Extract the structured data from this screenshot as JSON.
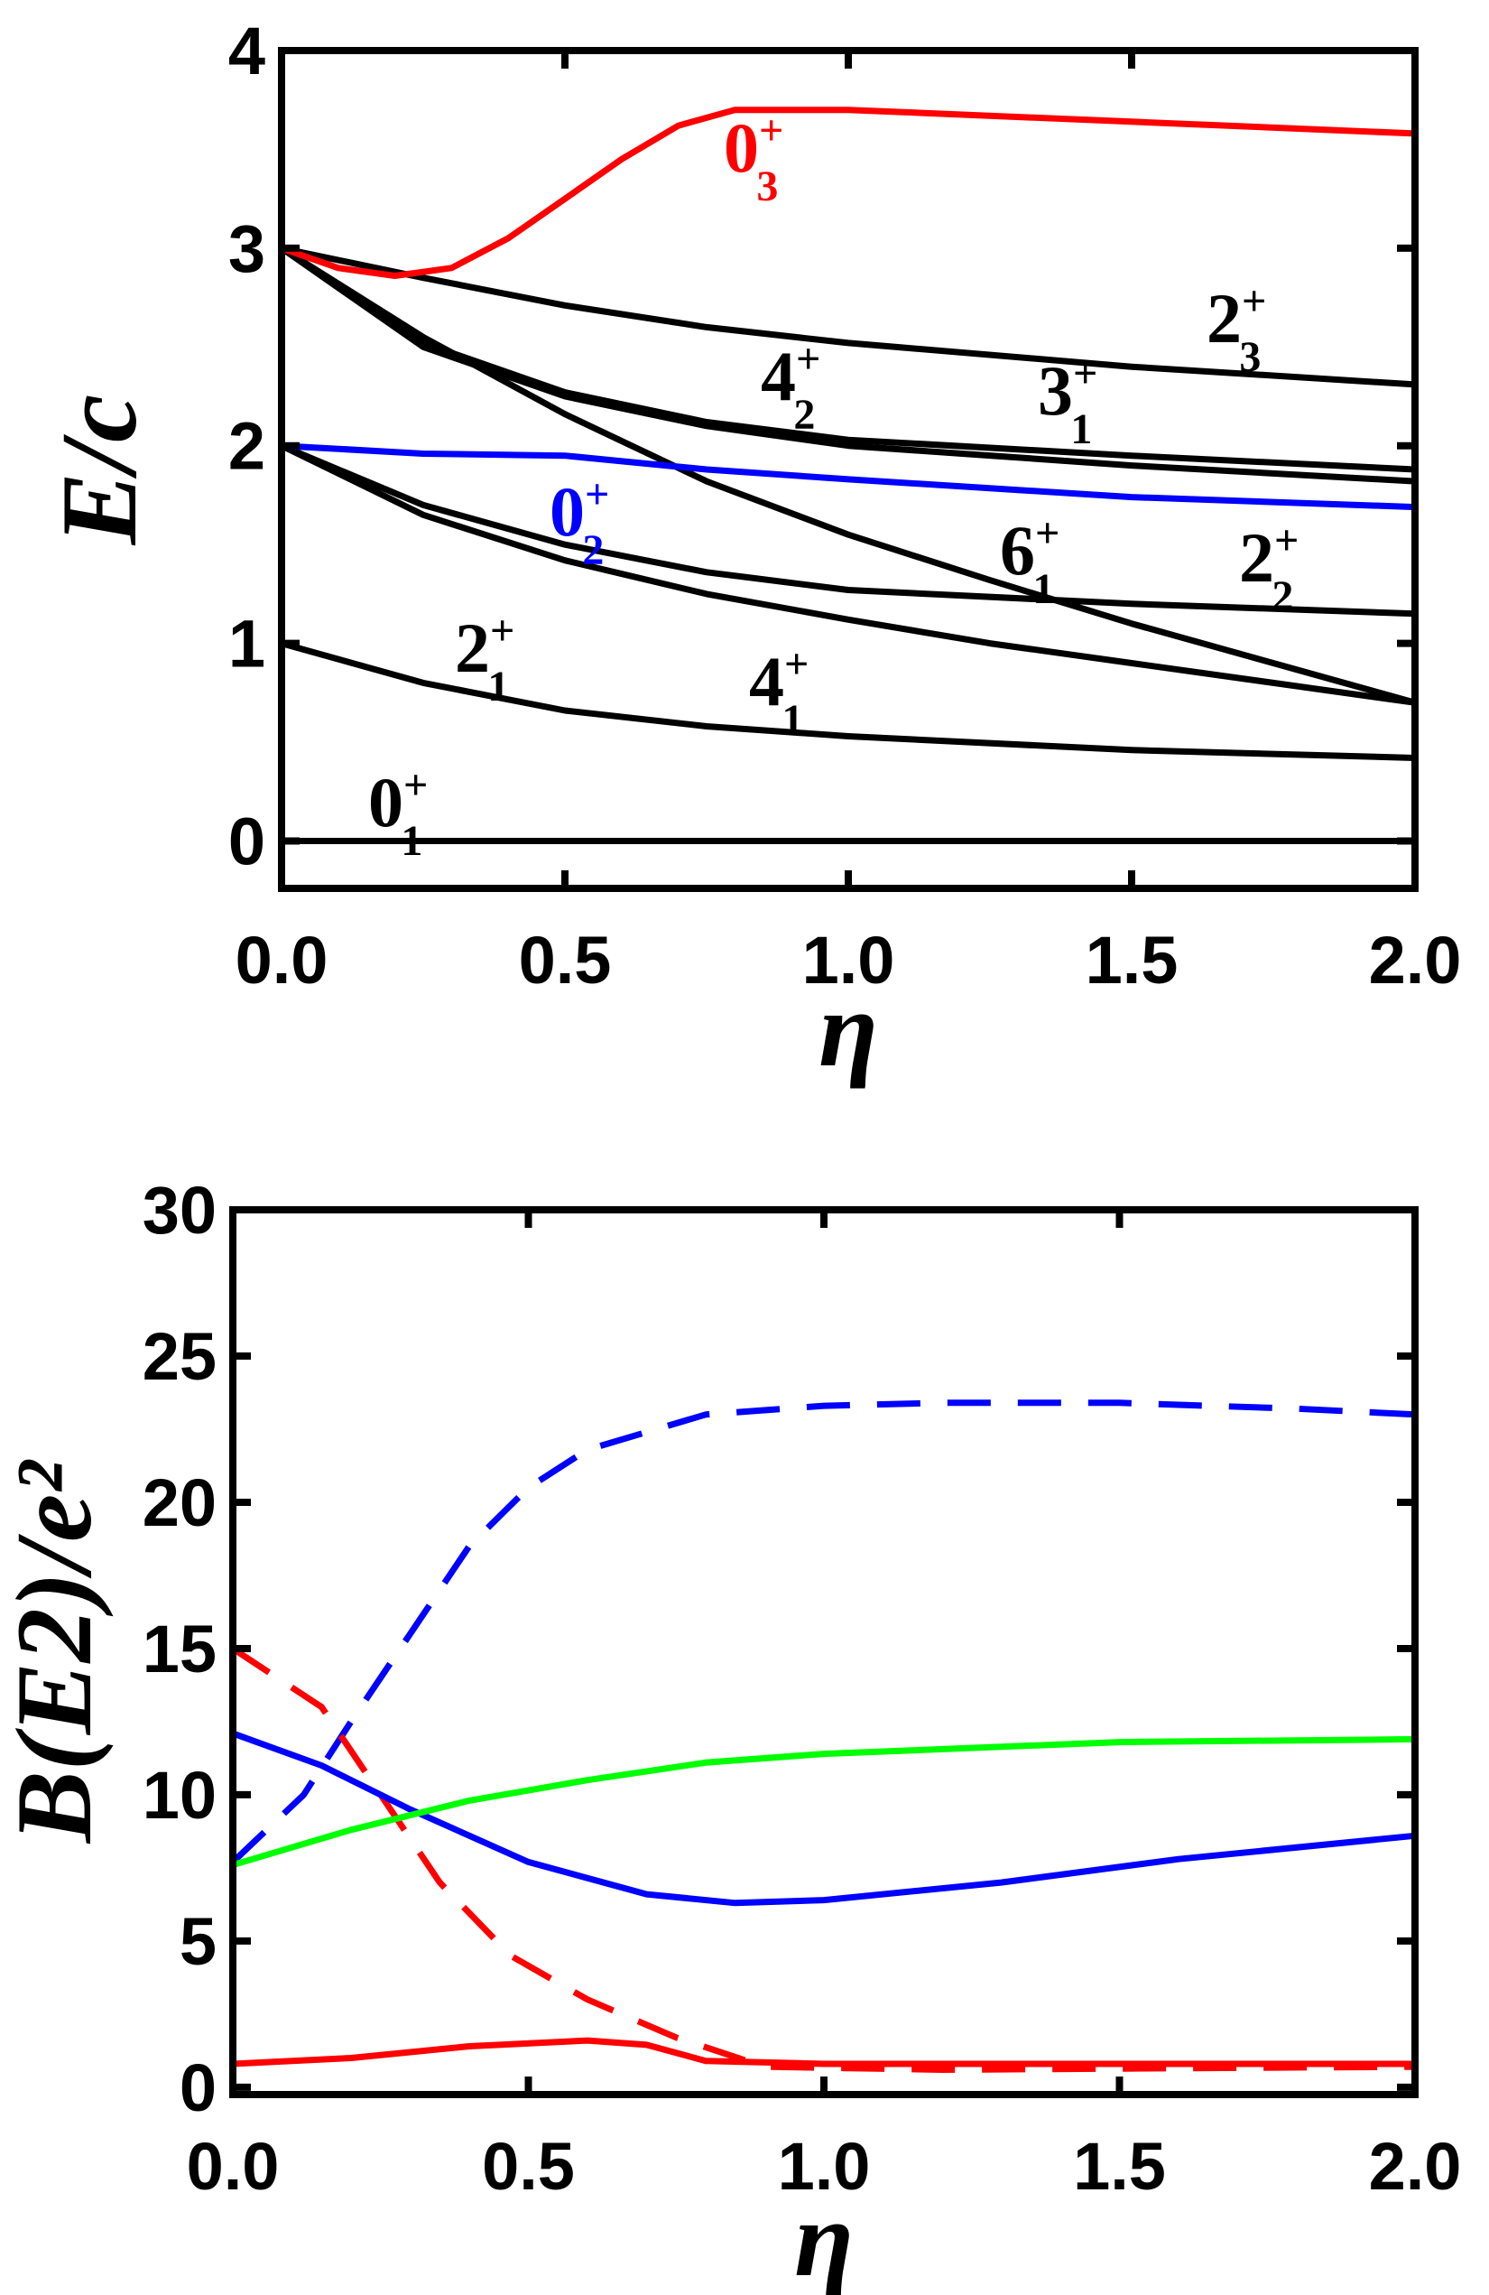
{
  "chart_data": [
    {
      "type": "line",
      "xlabel": "η",
      "ylabel": "E/c",
      "xlim": [
        0,
        2
      ],
      "ylim": [
        -0.24,
        4
      ],
      "xticks": [
        "0.0",
        "0.5",
        "1.0",
        "1.5",
        "2.0"
      ],
      "yticks": [
        "0",
        "1",
        "2",
        "3",
        "4"
      ],
      "grid": false,
      "series": [
        {
          "name": "0_1+",
          "label": {
            "base": "0",
            "sub": "1",
            "sup": "+"
          },
          "color": "#000000",
          "dash": false,
          "x": [
            0,
            2
          ],
          "y": [
            0,
            0
          ]
        },
        {
          "name": "2_1+",
          "label": {
            "base": "2",
            "sub": "1",
            "sup": "+"
          },
          "color": "#000000",
          "dash": false,
          "x": [
            0,
            0.25,
            0.5,
            0.75,
            1.0,
            1.5,
            2.0
          ],
          "y": [
            1.0,
            0.8,
            0.66,
            0.58,
            0.53,
            0.46,
            0.42
          ]
        },
        {
          "name": "4_1+",
          "label": {
            "base": "4",
            "sub": "1",
            "sup": "+"
          },
          "color": "#000000",
          "dash": false,
          "x": [
            0,
            0.25,
            0.5,
            0.75,
            1.0,
            1.25,
            1.5,
            1.75,
            2.0
          ],
          "y": [
            2.0,
            1.65,
            1.42,
            1.25,
            1.12,
            1.0,
            0.9,
            0.8,
            0.7
          ]
        },
        {
          "name": "2_2+",
          "label": {
            "base": "2",
            "sub": "2",
            "sup": "+"
          },
          "color": "#000000",
          "dash": false,
          "x": [
            0,
            0.25,
            0.5,
            0.75,
            1.0,
            1.5,
            2.0
          ],
          "y": [
            2.0,
            1.7,
            1.5,
            1.36,
            1.27,
            1.2,
            1.15
          ]
        },
        {
          "name": "6_1+",
          "label": {
            "base": "6",
            "sub": "1",
            "sup": "+"
          },
          "color": "#000000",
          "dash": false,
          "x": [
            0,
            0.25,
            0.5,
            0.75,
            1.0,
            1.25,
            1.5,
            1.75,
            2.0
          ],
          "y": [
            3.0,
            2.55,
            2.16,
            1.82,
            1.55,
            1.32,
            1.1,
            0.9,
            0.7
          ]
        },
        {
          "name": "4_2+",
          "label": {
            "base": "4",
            "sub": "2",
            "sup": "+"
          },
          "color": "#000000",
          "dash": false,
          "x": [
            0,
            0.25,
            0.5,
            0.75,
            1.0,
            1.5,
            2.0
          ],
          "y": [
            3.0,
            2.5,
            2.25,
            2.1,
            2.0,
            1.9,
            1.82
          ]
        },
        {
          "name": "3_1+",
          "label": {
            "base": "3",
            "sub": "1",
            "sup": "+"
          },
          "color": "#000000",
          "dash": false,
          "x": [
            0,
            0.25,
            0.5,
            0.75,
            1.0,
            1.5,
            2.0
          ],
          "y": [
            3.0,
            2.52,
            2.27,
            2.12,
            2.03,
            1.95,
            1.88
          ]
        },
        {
          "name": "2_3+",
          "label": {
            "base": "2",
            "sub": "3",
            "sup": "+"
          },
          "color": "#000000",
          "dash": false,
          "x": [
            0,
            0.25,
            0.5,
            0.75,
            1.0,
            1.5,
            2.0
          ],
          "y": [
            3.0,
            2.85,
            2.71,
            2.6,
            2.52,
            2.4,
            2.31
          ]
        },
        {
          "name": "0_2+",
          "label": {
            "base": "0",
            "sub": "2",
            "sup": "+"
          },
          "color": "#0000ff",
          "dash": false,
          "x": [
            0,
            0.25,
            0.5,
            0.75,
            1.0,
            1.5,
            2.0
          ],
          "y": [
            2.0,
            1.96,
            1.95,
            1.88,
            1.83,
            1.74,
            1.69
          ]
        },
        {
          "name": "0_3+",
          "label": {
            "base": "0",
            "sub": "3",
            "sup": "+"
          },
          "color": "#ff0000",
          "dash": false,
          "x": [
            0,
            0.1,
            0.2,
            0.3,
            0.4,
            0.5,
            0.6,
            0.7,
            0.8,
            1.0,
            1.5,
            2.0
          ],
          "y": [
            3.0,
            2.9,
            2.86,
            2.9,
            3.05,
            3.25,
            3.45,
            3.62,
            3.7,
            3.7,
            3.64,
            3.58
          ]
        }
      ]
    },
    {
      "type": "line",
      "xlabel": "η",
      "ylabel": "B(E2)/e²",
      "xlim": [
        0,
        2
      ],
      "ylim": [
        -0.25,
        30
      ],
      "xticks": [
        "0.0",
        "0.5",
        "1.0",
        "1.5",
        "2.0"
      ],
      "yticks": [
        "0",
        "5",
        "10",
        "15",
        "20",
        "25",
        "30"
      ],
      "grid": false,
      "series": [
        {
          "name": "blue-dashed",
          "color": "#0000ff",
          "dash": true,
          "x": [
            0,
            0.12,
            0.2,
            0.3,
            0.4,
            0.5,
            0.6,
            0.8,
            1.0,
            1.2,
            1.5,
            1.8,
            2.0
          ],
          "y": [
            7.7,
            10.0,
            12.5,
            15.5,
            18.5,
            20.5,
            21.8,
            23.0,
            23.3,
            23.4,
            23.4,
            23.2,
            23.0
          ]
        },
        {
          "name": "red-dashed",
          "color": "#ff0000",
          "dash": true,
          "x": [
            0,
            0.15,
            0.25,
            0.35,
            0.47,
            0.6,
            0.75,
            0.9,
            1.2,
            1.6,
            2.0
          ],
          "y": [
            15.0,
            13.0,
            10.0,
            7.0,
            4.5,
            3.0,
            1.7,
            0.7,
            0.6,
            0.65,
            0.7
          ]
        },
        {
          "name": "blue-solid",
          "color": "#0000ff",
          "dash": false,
          "x": [
            0,
            0.15,
            0.3,
            0.5,
            0.7,
            0.85,
            1.0,
            1.3,
            1.6,
            2.0
          ],
          "y": [
            12.1,
            11.0,
            9.5,
            7.7,
            6.6,
            6.3,
            6.4,
            7.0,
            7.8,
            8.6
          ]
        },
        {
          "name": "green-solid",
          "color": "#00ff00",
          "dash": false,
          "x": [
            0,
            0.2,
            0.4,
            0.6,
            0.8,
            1.0,
            1.5,
            2.0
          ],
          "y": [
            7.6,
            8.8,
            9.8,
            10.5,
            11.1,
            11.4,
            11.8,
            11.9
          ]
        },
        {
          "name": "red-solid",
          "color": "#ff0000",
          "dash": false,
          "x": [
            0,
            0.2,
            0.4,
            0.6,
            0.7,
            0.8,
            1.0,
            1.5,
            2.0
          ],
          "y": [
            0.8,
            1.0,
            1.4,
            1.6,
            1.45,
            0.9,
            0.8,
            0.8,
            0.8
          ]
        }
      ]
    }
  ]
}
